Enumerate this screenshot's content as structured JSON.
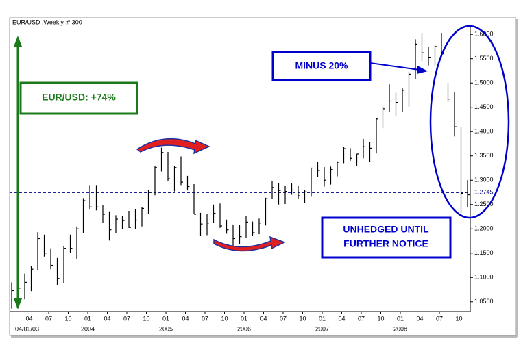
{
  "chart_data": {
    "type": "ohlc",
    "title": "EUR/USD ,Weekly, # 300",
    "start_label": "04/01/03",
    "x": [
      "2003-01",
      "2003-02",
      "2003-03",
      "2003-04",
      "2003-05",
      "2003-06",
      "2003-07",
      "2003-08",
      "2003-09",
      "2003-10",
      "2003-11",
      "2003-12",
      "2004-01",
      "2004-02",
      "2004-03",
      "2004-04",
      "2004-05",
      "2004-06",
      "2004-07",
      "2004-08",
      "2004-09",
      "2004-10",
      "2004-11",
      "2004-12",
      "2005-01",
      "2005-02",
      "2005-03",
      "2005-04",
      "2005-05",
      "2005-06",
      "2005-07",
      "2005-08",
      "2005-09",
      "2005-10",
      "2005-11",
      "2005-12",
      "2006-01",
      "2006-02",
      "2006-03",
      "2006-04",
      "2006-05",
      "2006-06",
      "2006-07",
      "2006-08",
      "2006-09",
      "2006-10",
      "2006-11",
      "2006-12",
      "2007-01",
      "2007-02",
      "2007-03",
      "2007-04",
      "2007-05",
      "2007-06",
      "2007-07",
      "2007-08",
      "2007-09",
      "2007-10",
      "2007-11",
      "2007-12",
      "2008-01",
      "2008-02",
      "2008-03",
      "2008-04",
      "2008-05",
      "2008-06",
      "2008-07",
      "2008-08",
      "2008-09",
      "2008-10",
      "2008-11"
    ],
    "high": [
      1.09,
      1.092,
      1.108,
      1.123,
      1.193,
      1.188,
      1.16,
      1.14,
      1.165,
      1.188,
      1.205,
      1.263,
      1.29,
      1.29,
      1.249,
      1.236,
      1.228,
      1.227,
      1.237,
      1.24,
      1.245,
      1.28,
      1.33,
      1.367,
      1.358,
      1.33,
      1.349,
      1.309,
      1.292,
      1.233,
      1.23,
      1.25,
      1.252,
      1.219,
      1.209,
      1.208,
      1.227,
      1.215,
      1.221,
      1.264,
      1.299,
      1.294,
      1.288,
      1.294,
      1.288,
      1.28,
      1.325,
      1.337,
      1.327,
      1.328,
      1.339,
      1.368,
      1.366,
      1.354,
      1.385,
      1.378,
      1.428,
      1.452,
      1.497,
      1.48,
      1.49,
      1.523,
      1.59,
      1.603,
      1.575,
      1.578,
      1.603,
      1.5,
      1.482,
      1.41,
      1.3
    ],
    "low": [
      1.036,
      1.065,
      1.055,
      1.072,
      1.115,
      1.143,
      1.117,
      1.085,
      1.088,
      1.15,
      1.138,
      1.192,
      1.24,
      1.238,
      1.212,
      1.176,
      1.191,
      1.199,
      1.202,
      1.199,
      1.205,
      1.23,
      1.269,
      1.318,
      1.298,
      1.277,
      1.29,
      1.279,
      1.23,
      1.185,
      1.187,
      1.213,
      1.202,
      1.19,
      1.164,
      1.168,
      1.181,
      1.185,
      1.189,
      1.207,
      1.262,
      1.25,
      1.251,
      1.27,
      1.262,
      1.253,
      1.266,
      1.307,
      1.287,
      1.291,
      1.308,
      1.335,
      1.34,
      1.33,
      1.345,
      1.337,
      1.355,
      1.407,
      1.441,
      1.432,
      1.44,
      1.451,
      1.508,
      1.545,
      1.536,
      1.536,
      1.555,
      1.461,
      1.39,
      1.233,
      1.244
    ],
    "close": [
      1.073,
      1.078,
      1.09,
      1.117,
      1.18,
      1.15,
      1.125,
      1.098,
      1.16,
      1.16,
      1.2,
      1.258,
      1.245,
      1.245,
      1.23,
      1.198,
      1.22,
      1.217,
      1.203,
      1.218,
      1.242,
      1.275,
      1.326,
      1.357,
      1.303,
      1.326,
      1.296,
      1.287,
      1.23,
      1.21,
      1.212,
      1.232,
      1.206,
      1.198,
      1.18,
      1.184,
      1.214,
      1.192,
      1.212,
      1.262,
      1.285,
      1.279,
      1.277,
      1.28,
      1.268,
      1.276,
      1.325,
      1.32,
      1.3,
      1.322,
      1.337,
      1.365,
      1.345,
      1.354,
      1.369,
      1.366,
      1.426,
      1.447,
      1.463,
      1.46,
      1.485,
      1.518,
      1.58,
      1.562,
      1.553,
      1.575,
      1.56,
      1.467,
      1.41,
      1.273,
      1.27
    ],
    "color": "#000000",
    "ylim": [
      1.03,
      1.62
    ],
    "yticks": [
      {
        "value": 1.05,
        "label": "1.0500"
      },
      {
        "value": 1.1,
        "label": "1.1000"
      },
      {
        "value": 1.15,
        "label": "1.1500"
      },
      {
        "value": 1.2,
        "label": "1.2000"
      },
      {
        "value": 1.25,
        "label": "1.2500"
      },
      {
        "value": 1.3,
        "label": "1.3000"
      },
      {
        "value": 1.35,
        "label": "1.3500"
      },
      {
        "value": 1.4,
        "label": "1.4000"
      },
      {
        "value": 1.45,
        "label": "1.4500"
      },
      {
        "value": 1.5,
        "label": "1.5000"
      },
      {
        "value": 1.55,
        "label": "1.5500"
      },
      {
        "value": 1.6,
        "label": "1.6000"
      }
    ],
    "xticks": [
      {
        "value": "2003-04",
        "label": "04"
      },
      {
        "value": "2003-07",
        "label": "07"
      },
      {
        "value": "2003-10",
        "label": "10"
      },
      {
        "value": "2004-01",
        "label": "01"
      },
      {
        "value": "2004-04",
        "label": "04"
      },
      {
        "value": "2004-07",
        "label": "07"
      },
      {
        "value": "2004-10",
        "label": "10"
      },
      {
        "value": "2005-01",
        "label": "01"
      },
      {
        "value": "2005-04",
        "label": "04"
      },
      {
        "value": "2005-07",
        "label": "07"
      },
      {
        "value": "2005-10",
        "label": "10"
      },
      {
        "value": "2006-01",
        "label": "01"
      },
      {
        "value": "2006-04",
        "label": "04"
      },
      {
        "value": "2006-07",
        "label": "07"
      },
      {
        "value": "2006-10",
        "label": "10"
      },
      {
        "value": "2007-01",
        "label": "01"
      },
      {
        "value": "2007-04",
        "label": "04"
      },
      {
        "value": "2007-07",
        "label": "07"
      },
      {
        "value": "2007-10",
        "label": "10"
      },
      {
        "value": "2008-01",
        "label": "01"
      },
      {
        "value": "2008-04",
        "label": "04"
      },
      {
        "value": "2008-07",
        "label": "07"
      },
      {
        "value": "2008-10",
        "label": "10"
      }
    ],
    "year_labels": [
      {
        "value": "2004-01",
        "label": "2004"
      },
      {
        "value": "2005-01",
        "label": "2005"
      },
      {
        "value": "2006-01",
        "label": "2006"
      },
      {
        "value": "2007-01",
        "label": "2007"
      },
      {
        "value": "2008-01",
        "label": "2008"
      }
    ],
    "reference_line": {
      "value": 1.2745,
      "label": "1.2745",
      "color": "#000080"
    },
    "annotations": {
      "gain": "EUR/USD: +74%",
      "drop": "MINUS 20%",
      "stance": [
        "UNHEDGED UNTIL",
        "FURTHER NOTICE"
      ]
    }
  }
}
